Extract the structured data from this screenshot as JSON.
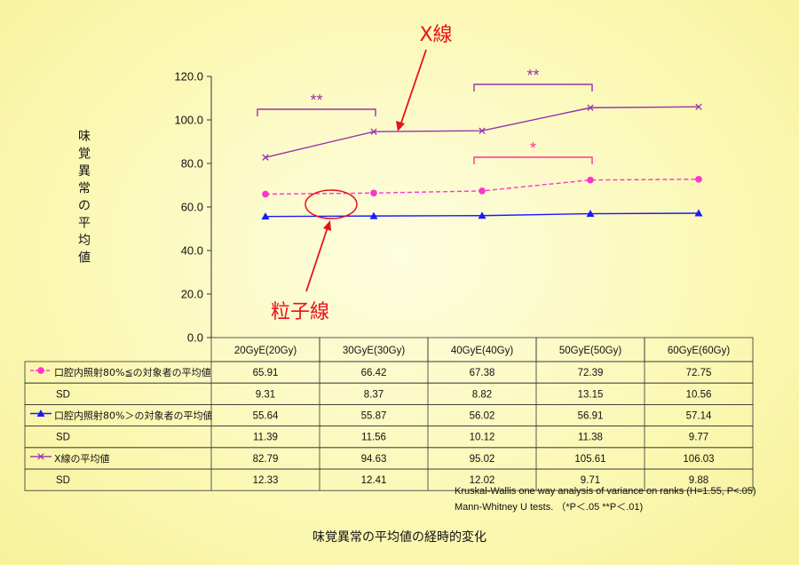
{
  "chart_data": {
    "type": "line",
    "title": "味覚異常の平均値の経時的変化",
    "ylabel": "味覚異常の平均値",
    "ylim": [
      0,
      120
    ],
    "yticks": [
      "0.0",
      "20.0",
      "40.0",
      "60.0",
      "80.0",
      "100.0",
      "120.0"
    ],
    "categories": [
      "20GyE(20Gy)",
      "30GyE(30Gy)",
      "40GyE(40Gy)",
      "50GyE(50Gy)",
      "60GyE(60Gy)"
    ],
    "series": [
      {
        "name": "口腔内照射80%≦の対象者の平均値",
        "values": [
          65.91,
          66.42,
          67.38,
          72.39,
          72.75
        ],
        "sd": [
          "9.31",
          "8.37",
          "8.82",
          "13.15",
          "10.56"
        ],
        "color": "#ff33cc",
        "marker": "circle",
        "dash": true
      },
      {
        "name": "口腔内照射80%＞の対象者の平均値",
        "values": [
          55.64,
          55.87,
          56.02,
          56.91,
          57.14
        ],
        "sd": [
          "11.39",
          "11.56",
          "10.12",
          "11.38",
          "9.77"
        ],
        "color": "#1a1aff",
        "marker": "triangle",
        "dash": false
      },
      {
        "name": "X線の平均値",
        "values": [
          82.79,
          94.63,
          95.02,
          105.61,
          106.03
        ],
        "sd": [
          "12.33",
          "12.41",
          "12.02",
          "9.71",
          "9.88"
        ],
        "color": "#9933aa",
        "marker": "x",
        "dash": false
      }
    ],
    "sd_label": "SD",
    "display_values": [
      [
        "65.91",
        "66.42",
        "67.38",
        "72.39",
        "72.75"
      ],
      [
        "55.64",
        "55.87",
        "56.02",
        "56.91",
        "57.14"
      ],
      [
        "82.79",
        "94.63",
        "95.02",
        "105.61",
        "106.03"
      ]
    ],
    "annotations": {
      "xray_label": "X線",
      "particle_label": "粒子線",
      "brackets": [
        {
          "from": 0,
          "to": 1,
          "text": "**",
          "color": "#9933aa"
        },
        {
          "from": 2,
          "to": 3,
          "text": "**",
          "color": "#9933aa"
        },
        {
          "from": 2,
          "to": 3,
          "text": "*",
          "color": "#ff3399"
        }
      ]
    },
    "notes": [
      "Kruskal-Wallis one way analysis of variance on ranks (H=1.55, P<.05)",
      "Mann-Whitney U tests. （*P＜.05 **P＜.01)"
    ]
  }
}
